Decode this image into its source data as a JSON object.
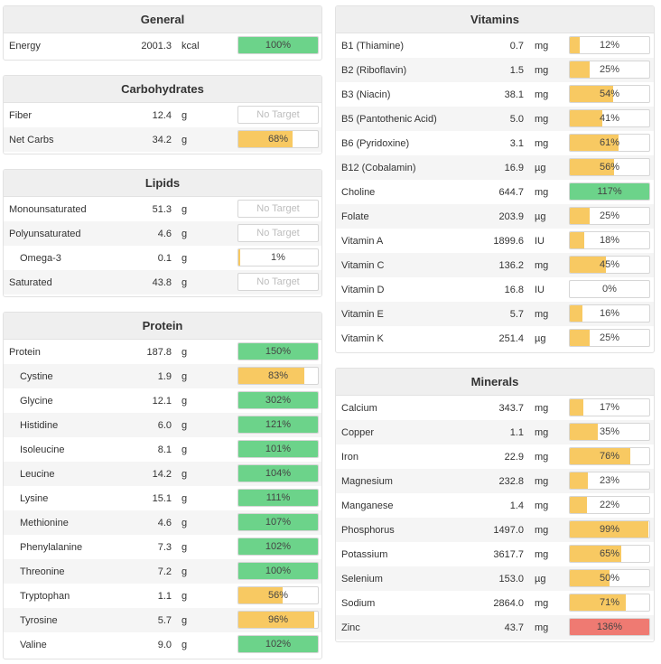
{
  "colors": {
    "green": "#6cd38a",
    "yellow": "#f8c962",
    "red": "#ef7a72",
    "header_bg": "#efefef"
  },
  "general": {
    "title": "General",
    "rows": [
      {
        "name": "Energy",
        "amount": "2001.3",
        "unit": "kcal",
        "pct_label": "100%",
        "fill": 1.0,
        "color": "green"
      }
    ]
  },
  "carbohydrates": {
    "title": "Carbohydrates",
    "rows": [
      {
        "name": "Fiber",
        "amount": "12.4",
        "unit": "g",
        "pct_label": "No Target",
        "fill": 0,
        "color": "none"
      },
      {
        "name": "Net Carbs",
        "amount": "34.2",
        "unit": "g",
        "pct_label": "68%",
        "fill": 0.68,
        "color": "yellow"
      }
    ]
  },
  "lipids": {
    "title": "Lipids",
    "rows": [
      {
        "name": "Monounsaturated",
        "amount": "51.3",
        "unit": "g",
        "pct_label": "No Target",
        "fill": 0,
        "color": "none",
        "indent": false
      },
      {
        "name": "Polyunsaturated",
        "amount": "4.6",
        "unit": "g",
        "pct_label": "No Target",
        "fill": 0,
        "color": "none",
        "indent": false
      },
      {
        "name": "Omega-3",
        "amount": "0.1",
        "unit": "g",
        "pct_label": "1%",
        "fill": 0.01,
        "color": "yellow",
        "indent": true
      },
      {
        "name": "Saturated",
        "amount": "43.8",
        "unit": "g",
        "pct_label": "No Target",
        "fill": 0,
        "color": "none",
        "indent": false
      }
    ]
  },
  "protein": {
    "title": "Protein",
    "rows": [
      {
        "name": "Protein",
        "amount": "187.8",
        "unit": "g",
        "pct_label": "150%",
        "fill": 1.0,
        "color": "green",
        "indent": false
      },
      {
        "name": "Cystine",
        "amount": "1.9",
        "unit": "g",
        "pct_label": "83%",
        "fill": 0.83,
        "color": "yellow",
        "indent": true
      },
      {
        "name": "Glycine",
        "amount": "12.1",
        "unit": "g",
        "pct_label": "302%",
        "fill": 1.0,
        "color": "green",
        "indent": true
      },
      {
        "name": "Histidine",
        "amount": "6.0",
        "unit": "g",
        "pct_label": "121%",
        "fill": 1.0,
        "color": "green",
        "indent": true
      },
      {
        "name": "Isoleucine",
        "amount": "8.1",
        "unit": "g",
        "pct_label": "101%",
        "fill": 1.0,
        "color": "green",
        "indent": true
      },
      {
        "name": "Leucine",
        "amount": "14.2",
        "unit": "g",
        "pct_label": "104%",
        "fill": 1.0,
        "color": "green",
        "indent": true
      },
      {
        "name": "Lysine",
        "amount": "15.1",
        "unit": "g",
        "pct_label": "111%",
        "fill": 1.0,
        "color": "green",
        "indent": true
      },
      {
        "name": "Methionine",
        "amount": "4.6",
        "unit": "g",
        "pct_label": "107%",
        "fill": 1.0,
        "color": "green",
        "indent": true
      },
      {
        "name": "Phenylalanine",
        "amount": "7.3",
        "unit": "g",
        "pct_label": "102%",
        "fill": 1.0,
        "color": "green",
        "indent": true
      },
      {
        "name": "Threonine",
        "amount": "7.2",
        "unit": "g",
        "pct_label": "100%",
        "fill": 1.0,
        "color": "green",
        "indent": true
      },
      {
        "name": "Tryptophan",
        "amount": "1.1",
        "unit": "g",
        "pct_label": "56%",
        "fill": 0.56,
        "color": "yellow",
        "indent": true
      },
      {
        "name": "Tyrosine",
        "amount": "5.7",
        "unit": "g",
        "pct_label": "96%",
        "fill": 0.96,
        "color": "yellow",
        "indent": true
      },
      {
        "name": "Valine",
        "amount": "9.0",
        "unit": "g",
        "pct_label": "102%",
        "fill": 1.0,
        "color": "green",
        "indent": true
      }
    ]
  },
  "vitamins": {
    "title": "Vitamins",
    "rows": [
      {
        "name": "B1 (Thiamine)",
        "amount": "0.7",
        "unit": "mg",
        "pct_label": "12%",
        "fill": 0.12,
        "color": "yellow"
      },
      {
        "name": "B2 (Riboflavin)",
        "amount": "1.5",
        "unit": "mg",
        "pct_label": "25%",
        "fill": 0.25,
        "color": "yellow"
      },
      {
        "name": "B3 (Niacin)",
        "amount": "38.1",
        "unit": "mg",
        "pct_label": "54%",
        "fill": 0.54,
        "color": "yellow"
      },
      {
        "name": "B5 (Pantothenic Acid)",
        "amount": "5.0",
        "unit": "mg",
        "pct_label": "41%",
        "fill": 0.41,
        "color": "yellow"
      },
      {
        "name": "B6 (Pyridoxine)",
        "amount": "3.1",
        "unit": "mg",
        "pct_label": "61%",
        "fill": 0.61,
        "color": "yellow"
      },
      {
        "name": "B12 (Cobalamin)",
        "amount": "16.9",
        "unit": "µg",
        "pct_label": "56%",
        "fill": 0.56,
        "color": "yellow"
      },
      {
        "name": "Choline",
        "amount": "644.7",
        "unit": "mg",
        "pct_label": "117%",
        "fill": 1.0,
        "color": "green"
      },
      {
        "name": "Folate",
        "amount": "203.9",
        "unit": "µg",
        "pct_label": "25%",
        "fill": 0.25,
        "color": "yellow"
      },
      {
        "name": "Vitamin A",
        "amount": "1899.6",
        "unit": "IU",
        "pct_label": "18%",
        "fill": 0.18,
        "color": "yellow"
      },
      {
        "name": "Vitamin C",
        "amount": "136.2",
        "unit": "mg",
        "pct_label": "45%",
        "fill": 0.45,
        "color": "yellow"
      },
      {
        "name": "Vitamin D",
        "amount": "16.8",
        "unit": "IU",
        "pct_label": "0%",
        "fill": 0,
        "color": "yellow"
      },
      {
        "name": "Vitamin E",
        "amount": "5.7",
        "unit": "mg",
        "pct_label": "16%",
        "fill": 0.16,
        "color": "yellow"
      },
      {
        "name": "Vitamin K",
        "amount": "251.4",
        "unit": "µg",
        "pct_label": "25%",
        "fill": 0.25,
        "color": "yellow"
      }
    ]
  },
  "minerals": {
    "title": "Minerals",
    "rows": [
      {
        "name": "Calcium",
        "amount": "343.7",
        "unit": "mg",
        "pct_label": "17%",
        "fill": 0.17,
        "color": "yellow"
      },
      {
        "name": "Copper",
        "amount": "1.1",
        "unit": "mg",
        "pct_label": "35%",
        "fill": 0.35,
        "color": "yellow"
      },
      {
        "name": "Iron",
        "amount": "22.9",
        "unit": "mg",
        "pct_label": "76%",
        "fill": 0.76,
        "color": "yellow"
      },
      {
        "name": "Magnesium",
        "amount": "232.8",
        "unit": "mg",
        "pct_label": "23%",
        "fill": 0.23,
        "color": "yellow"
      },
      {
        "name": "Manganese",
        "amount": "1.4",
        "unit": "mg",
        "pct_label": "22%",
        "fill": 0.22,
        "color": "yellow"
      },
      {
        "name": "Phosphorus",
        "amount": "1497.0",
        "unit": "mg",
        "pct_label": "99%",
        "fill": 0.99,
        "color": "yellow"
      },
      {
        "name": "Potassium",
        "amount": "3617.7",
        "unit": "mg",
        "pct_label": "65%",
        "fill": 0.65,
        "color": "yellow"
      },
      {
        "name": "Selenium",
        "amount": "153.0",
        "unit": "µg",
        "pct_label": "50%",
        "fill": 0.5,
        "color": "yellow"
      },
      {
        "name": "Sodium",
        "amount": "2864.0",
        "unit": "mg",
        "pct_label": "71%",
        "fill": 0.71,
        "color": "yellow"
      },
      {
        "name": "Zinc",
        "amount": "43.7",
        "unit": "mg",
        "pct_label": "136%",
        "fill": 1.0,
        "color": "red"
      }
    ]
  }
}
